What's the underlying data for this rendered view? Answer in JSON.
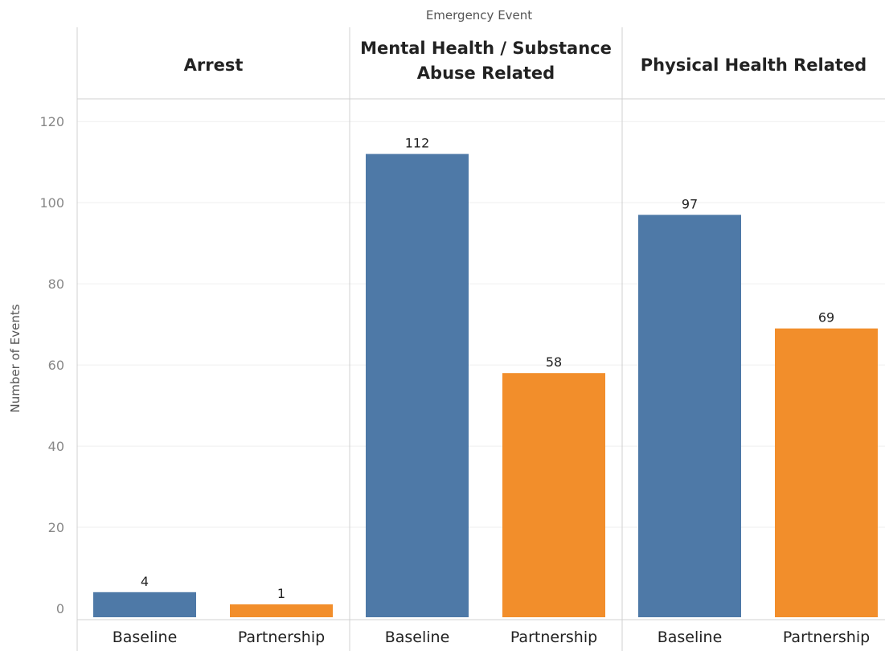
{
  "chart_data": {
    "type": "bar",
    "column_title": "Emergency Event",
    "ylabel": "Number of Events",
    "ylim": [
      0,
      124
    ],
    "yticks": [
      0,
      20,
      40,
      60,
      80,
      100,
      120
    ],
    "grid": true,
    "panels": [
      {
        "header": [
          "Arrest"
        ],
        "categories": [
          "Baseline",
          "Partnership"
        ],
        "values": [
          4,
          1
        ]
      },
      {
        "header": [
          "Mental Health / Substance",
          "Abuse Related"
        ],
        "categories": [
          "Baseline",
          "Partnership"
        ],
        "values": [
          112,
          58
        ]
      },
      {
        "header": [
          "Physical Health Related"
        ],
        "categories": [
          "Baseline",
          "Partnership"
        ],
        "values": [
          97,
          69
        ]
      }
    ],
    "colors": {
      "Baseline": "#4e79a7",
      "Partnership": "#f28e2b"
    }
  }
}
